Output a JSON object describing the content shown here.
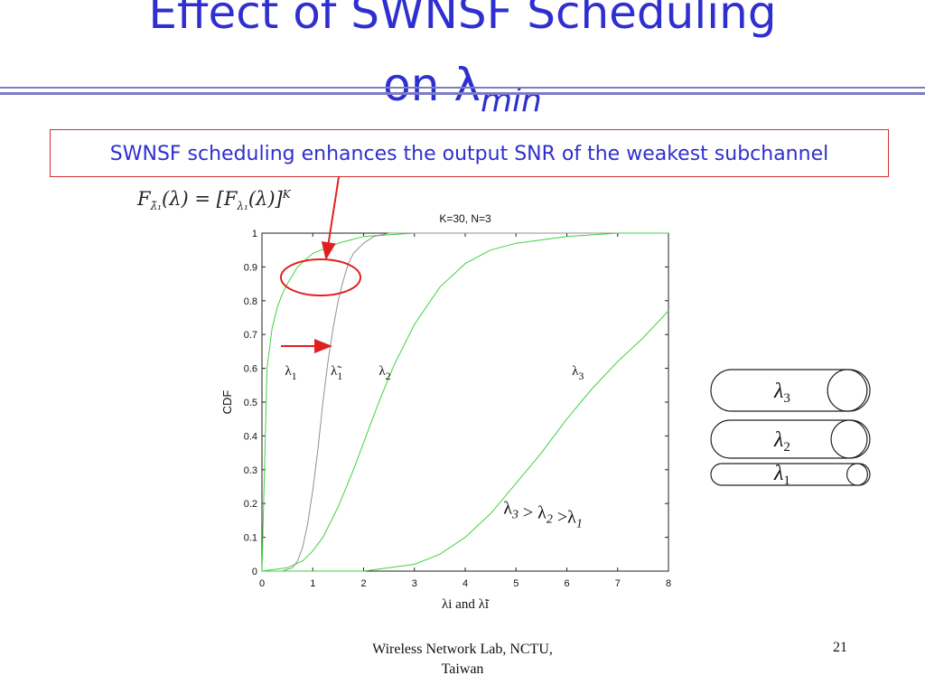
{
  "title": {
    "line1": "Effect of SWNSF Scheduling",
    "line2_prefix": "on λ",
    "line2_subscript": "min"
  },
  "callout": "SWNSF scheduling enhances the output SNR  of the weakest subchannel",
  "formula": {
    "lhs": "F",
    "lhs_sub": "λ̃₁",
    "rhs": "(λ) = [F",
    "rhs_sub": "λ₁",
    "rhs_end": "(λ)]",
    "exponent": "K"
  },
  "footer": {
    "line1": "Wireless Network Lab, NCTU,",
    "line2": "Taiwan",
    "page": "21"
  },
  "chart_data": {
    "type": "line",
    "title": "K=30, N=3",
    "xlabel": "λi  and  λ̃i",
    "ylabel": "CDF",
    "xlim": [
      0,
      8
    ],
    "ylim": [
      0,
      1
    ],
    "xticks": [
      "0",
      "1",
      "2",
      "3",
      "4",
      "5",
      "6",
      "7",
      "8"
    ],
    "yticks": [
      "0",
      "0.1",
      "0.2",
      "0.3",
      "0.4",
      "0.5",
      "0.6",
      "0.7",
      "0.8",
      "0.9",
      "1"
    ],
    "grid": false,
    "series_labels": [
      {
        "text": "λ",
        "sub": "1",
        "x": 0.45,
        "y": 0.58
      },
      {
        "text": "λ̃",
        "sub": "1",
        "x": 1.35,
        "y": 0.58
      },
      {
        "text": "λ",
        "sub": "2",
        "x": 2.3,
        "y": 0.58
      },
      {
        "text": "λ",
        "sub": "3",
        "x": 6.1,
        "y": 0.58
      }
    ],
    "series": [
      {
        "color": "#3fd33f",
        "x": [
          0,
          0.1,
          0.2,
          0.3,
          0.4,
          0.5,
          0.7,
          1.0,
          1.5,
          2.0,
          3.0,
          8.0
        ],
        "y": [
          0,
          0.6,
          0.72,
          0.78,
          0.82,
          0.85,
          0.9,
          0.94,
          0.97,
          0.99,
          1.0,
          1.0
        ]
      },
      {
        "color": "#909090",
        "x": [
          0,
          0.4,
          0.6,
          0.7,
          0.8,
          0.9,
          1.0,
          1.1,
          1.2,
          1.3,
          1.4,
          1.5,
          1.6,
          1.7,
          1.8,
          2.0,
          2.2,
          2.5,
          3.0,
          8.0
        ],
        "y": [
          0,
          0.0,
          0.01,
          0.03,
          0.07,
          0.14,
          0.24,
          0.36,
          0.5,
          0.62,
          0.72,
          0.8,
          0.86,
          0.91,
          0.94,
          0.97,
          0.99,
          1.0,
          1.0,
          1.0
        ]
      },
      {
        "color": "#3fd33f",
        "x": [
          0,
          0.5,
          0.8,
          1.0,
          1.2,
          1.5,
          1.8,
          2.0,
          2.3,
          2.6,
          3.0,
          3.5,
          4.0,
          4.5,
          5.0,
          6.0,
          7.0,
          8.0
        ],
        "y": [
          0,
          0.01,
          0.03,
          0.06,
          0.1,
          0.19,
          0.3,
          0.38,
          0.5,
          0.61,
          0.73,
          0.84,
          0.91,
          0.95,
          0.97,
          0.99,
          1.0,
          1.0
        ]
      },
      {
        "color": "#3fd33f",
        "x": [
          0,
          1.0,
          2.0,
          2.5,
          3.0,
          3.5,
          4.0,
          4.5,
          5.0,
          5.5,
          6.0,
          6.5,
          7.0,
          7.5,
          8.0
        ],
        "y": [
          0,
          0.0,
          0.0,
          0.01,
          0.02,
          0.05,
          0.1,
          0.17,
          0.26,
          0.35,
          0.45,
          0.54,
          0.62,
          0.69,
          0.77
        ]
      }
    ],
    "annotation": {
      "parts": [
        {
          "t": "λ",
          "s": "3"
        },
        {
          "t": " > λ",
          "s": "2"
        },
        {
          "t": " >λ",
          "s": "1"
        }
      ],
      "x": 4.75,
      "y": 0.17
    },
    "arrow_color": "#e02020"
  },
  "pipes": [
    {
      "label": "λ",
      "sub": "3"
    },
    {
      "label": "λ",
      "sub": "2"
    },
    {
      "label": "λ",
      "sub": "1"
    }
  ]
}
